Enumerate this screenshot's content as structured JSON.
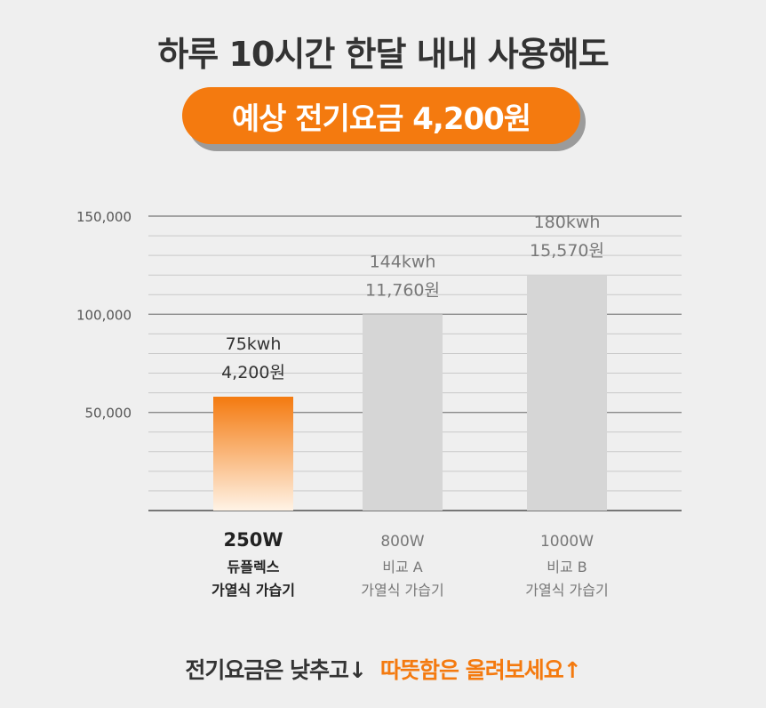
{
  "header": {
    "headline": "하루 10시간 한달 내내 사용해도",
    "highlight": "예상 전기요금 4,200원"
  },
  "chart_data": {
    "type": "bar",
    "ylim": [
      0,
      150000
    ],
    "y_ticks": [
      {
        "value": 50000,
        "label": "50,000"
      },
      {
        "value": 100000,
        "label": "100,000"
      },
      {
        "value": 150000,
        "label": "150,000"
      }
    ],
    "grid": true,
    "bars": [
      {
        "value": 58000,
        "kwh": "75kwh",
        "price": "4,200원",
        "label": [
          "250W",
          "듀플렉스",
          "가열식 가습기"
        ],
        "highlight": true,
        "color": "#f47a0f"
      },
      {
        "value": 100000,
        "kwh": "144kwh",
        "price": "11,760원",
        "label": [
          "800W",
          "비교 A",
          "가열식 가습기"
        ],
        "highlight": false,
        "color": "#d6d6d6"
      },
      {
        "value": 120000,
        "kwh": "180kwh",
        "price": "15,570원",
        "label": [
          "1000W",
          "비교 B",
          "가열식 가습기"
        ],
        "highlight": false,
        "color": "#d6d6d6"
      }
    ]
  },
  "footer": {
    "text1": "전기요금은 낮추고↓",
    "text2": "따뜻함은 올려보세요↑"
  }
}
